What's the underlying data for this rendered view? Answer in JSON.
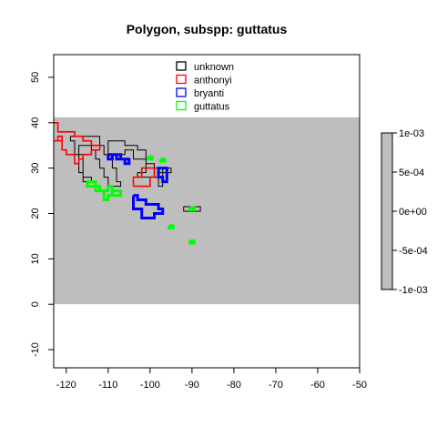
{
  "chart_data": {
    "type": "map",
    "title": "Polygon, subspp: guttatus",
    "xlabel": "",
    "ylabel": "",
    "xlim": [
      -123,
      -50
    ],
    "ylim": [
      -14,
      55
    ],
    "x_ticks": [
      "-120",
      "-110",
      "-100",
      "-90",
      "-80",
      "-70",
      "-60",
      "-50"
    ],
    "y_ticks": [
      "-10",
      "0",
      "10",
      "20",
      "30",
      "40",
      "50"
    ],
    "grid": false,
    "raster": {
      "x_range": [
        -123,
        -50
      ],
      "y_range": [
        0,
        41.2
      ],
      "value": 0,
      "color": "#bebebe"
    },
    "colorbar": {
      "range": [
        -0.001,
        0.001
      ],
      "tick_labels": [
        "1e-03",
        "5e-04",
        "0e+00",
        "-5e-04",
        "-1e-03"
      ],
      "fill_color": "#bebebe"
    },
    "legend": {
      "position": "top",
      "entries": [
        {
          "label": "unknown",
          "color": "#000000"
        },
        {
          "label": "anthonyi",
          "color": "#ff0000"
        },
        {
          "label": "bryanti",
          "color": "#0000ff"
        },
        {
          "label": "guttatus",
          "color": "#00ff00"
        }
      ]
    },
    "series": [
      {
        "name": "unknown",
        "color": "#000000",
        "line_width": 1,
        "paths": [
          [
            [
              -119,
              37
            ],
            [
              -112,
              37
            ],
            [
              -112,
              35
            ],
            [
              -111,
              35
            ],
            [
              -111,
              33
            ],
            [
              -110,
              33
            ],
            [
              -110,
              36
            ],
            [
              -106,
              36
            ],
            [
              -106,
              35
            ],
            [
              -103,
              35
            ],
            [
              -103,
              34
            ],
            [
              -101,
              34
            ],
            [
              -101,
              31
            ],
            [
              -99,
              31
            ],
            [
              -99,
              30
            ],
            [
              -98,
              30
            ],
            [
              -98,
              29
            ],
            [
              -95,
              29
            ],
            [
              -95,
              30
            ],
            [
              -97,
              30
            ],
            [
              -97,
              26
            ],
            [
              -98,
              26
            ],
            [
              -98,
              28
            ],
            [
              -103,
              28
            ],
            [
              -103,
              29
            ],
            [
              -101,
              29
            ],
            [
              -101,
              32
            ],
            [
              -104,
              32
            ],
            [
              -104,
              34
            ],
            [
              -106,
              34
            ],
            [
              -106,
              33
            ],
            [
              -109,
              33
            ],
            [
              -109,
              30
            ],
            [
              -108,
              30
            ],
            [
              -108,
              27
            ],
            [
              -107,
              27
            ],
            [
              -107,
              26
            ],
            [
              -110,
              26
            ],
            [
              -110,
              28
            ],
            [
              -111,
              28
            ],
            [
              -111,
              30
            ],
            [
              -112,
              30
            ],
            [
              -112,
              32
            ],
            [
              -113,
              32
            ],
            [
              -113,
              34
            ],
            [
              -114,
              34
            ],
            [
              -114,
              35
            ],
            [
              -117,
              35
            ],
            [
              -117,
              29
            ],
            [
              -116,
              29
            ],
            [
              -116,
              28
            ],
            [
              -114,
              28
            ],
            [
              -114,
              27
            ],
            [
              -116,
              27
            ],
            [
              -116,
              33
            ],
            [
              -118,
              33
            ],
            [
              -118,
              36
            ],
            [
              -119,
              36
            ],
            [
              -119,
              37
            ]
          ],
          [
            [
              -92,
              21.5
            ],
            [
              -88,
              21.5
            ],
            [
              -88,
              20.5
            ],
            [
              -92,
              20.5
            ],
            [
              -92,
              21.5
            ]
          ]
        ]
      },
      {
        "name": "anthonyi",
        "color": "#ff0000",
        "line_width": 1.6,
        "paths": [
          [
            [
              -123,
              40
            ],
            [
              -122,
              40
            ],
            [
              -122,
              38
            ],
            [
              -118,
              38
            ],
            [
              -118,
              37
            ],
            [
              -116,
              37
            ],
            [
              -116,
              36
            ],
            [
              -114,
              36
            ],
            [
              -114,
              35
            ],
            [
              -112,
              35
            ],
            [
              -112,
              34
            ],
            [
              -114,
              34
            ],
            [
              -114,
              33
            ],
            [
              -116,
              33
            ],
            [
              -116,
              32
            ],
            [
              -117,
              32
            ],
            [
              -117,
              31
            ],
            [
              -118,
              31
            ],
            [
              -118,
              33
            ],
            [
              -120,
              33
            ],
            [
              -120,
              34
            ],
            [
              -121,
              34
            ],
            [
              -121,
              36
            ],
            [
              -122,
              36
            ],
            [
              -122,
              37
            ],
            [
              -121,
              37
            ],
            [
              -121,
              36
            ],
            [
              -123,
              36
            ]
          ],
          [
            [
              -104,
              26
            ],
            [
              -104,
              28
            ],
            [
              -102,
              28
            ],
            [
              -102,
              30
            ],
            [
              -99,
              30
            ],
            [
              -99,
              28
            ],
            [
              -100,
              28
            ],
            [
              -100,
              26
            ],
            [
              -104,
              26
            ]
          ]
        ]
      },
      {
        "name": "bryanti",
        "color": "#0000ff",
        "line_width": 3,
        "paths": [
          [
            [
              -110,
              33
            ],
            [
              -108,
              33
            ],
            [
              -108,
              32
            ],
            [
              -106,
              32
            ],
            [
              -106,
              31
            ],
            [
              -105,
              31
            ],
            [
              -105,
              32
            ],
            [
              -107,
              32
            ],
            [
              -107,
              33
            ],
            [
              -109,
              33
            ],
            [
              -109,
              32
            ],
            [
              -110,
              32
            ],
            [
              -110,
              33
            ]
          ],
          [
            [
              -104,
              24
            ],
            [
              -104,
              21
            ],
            [
              -102,
              21
            ],
            [
              -102,
              19
            ],
            [
              -99,
              19
            ],
            [
              -99,
              20
            ],
            [
              -97,
              20
            ],
            [
              -97,
              21
            ],
            [
              -98,
              21
            ],
            [
              -98,
              22
            ],
            [
              -101,
              22
            ],
            [
              -101,
              23
            ],
            [
              -103,
              23
            ],
            [
              -103,
              24
            ],
            [
              -104,
              24
            ]
          ],
          [
            [
              -98,
              29
            ],
            [
              -98,
              30
            ],
            [
              -96,
              30
            ],
            [
              -96,
              27
            ],
            [
              -97,
              27
            ],
            [
              -97,
              28
            ],
            [
              -98,
              28
            ],
            [
              -98,
              29
            ]
          ]
        ]
      },
      {
        "name": "guttatus",
        "color": "#00ff00",
        "line_width": 3,
        "paths": [
          [
            [
              -115,
              27
            ],
            [
              -115,
              26
            ],
            [
              -113,
              26
            ],
            [
              -113,
              25
            ],
            [
              -111,
              25
            ],
            [
              -111,
              23
            ],
            [
              -110,
              23
            ],
            [
              -110,
              24
            ],
            [
              -109,
              24
            ],
            [
              -109,
              26
            ],
            [
              -110,
              26
            ],
            [
              -110,
              25
            ],
            [
              -112,
              25
            ],
            [
              -112,
              26
            ],
            [
              -113,
              26
            ],
            [
              -113,
              27
            ],
            [
              -115,
              27
            ]
          ],
          [
            [
              -109,
              25
            ],
            [
              -107,
              25
            ],
            [
              -107,
              24
            ],
            [
              -109,
              24
            ],
            [
              -109,
              25
            ]
          ],
          [
            [
              -100.5,
              32.5
            ],
            [
              -99.5,
              32.5
            ],
            [
              -99.5,
              32
            ],
            [
              -100.5,
              32
            ],
            [
              -100.5,
              32.5
            ]
          ],
          [
            [
              -97.5,
              32
            ],
            [
              -96.5,
              32
            ],
            [
              -96.5,
              31.5
            ],
            [
              -97.5,
              31.5
            ],
            [
              -97.5,
              32
            ]
          ],
          [
            [
              -90.5,
              21.3
            ],
            [
              -89.5,
              21.3
            ],
            [
              -89.5,
              20.8
            ],
            [
              -90.5,
              20.8
            ],
            [
              -90.5,
              21.3
            ]
          ],
          [
            [
              -95.5,
              17.3
            ],
            [
              -94.5,
              17.3
            ],
            [
              -94.5,
              16.8
            ],
            [
              -95.5,
              16.8
            ],
            [
              -95.5,
              17.3
            ]
          ],
          [
            [
              -90.5,
              14
            ],
            [
              -89.5,
              14
            ],
            [
              -89.5,
              13.5
            ],
            [
              -90.5,
              13.5
            ],
            [
              -90.5,
              14
            ]
          ]
        ]
      }
    ]
  }
}
